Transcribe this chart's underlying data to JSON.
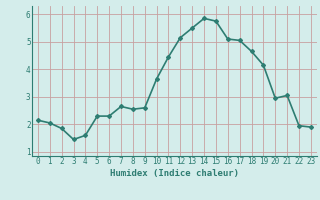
{
  "x": [
    0,
    1,
    2,
    3,
    4,
    5,
    6,
    7,
    8,
    9,
    10,
    11,
    12,
    13,
    14,
    15,
    16,
    17,
    18,
    19,
    20,
    21,
    22,
    23
  ],
  "y": [
    2.15,
    2.05,
    1.85,
    1.45,
    1.6,
    2.3,
    2.3,
    2.65,
    2.55,
    2.6,
    3.65,
    4.45,
    5.15,
    5.5,
    5.85,
    5.75,
    5.1,
    5.05,
    4.65,
    4.15,
    2.95,
    3.05,
    1.95,
    1.9
  ],
  "line_color": "#2e7d72",
  "marker": "D",
  "marker_size": 2.0,
  "bg_color": "#d4edeb",
  "grid_major_color": "#c0d8d8",
  "grid_minor_color": "#ddeeed",
  "xlabel": "Humidex (Indice chaleur)",
  "xlim": [
    -0.5,
    23.5
  ],
  "ylim": [
    0.85,
    6.3
  ],
  "yticks": [
    1,
    2,
    3,
    4,
    5,
    6
  ],
  "xticks": [
    0,
    1,
    2,
    3,
    4,
    5,
    6,
    7,
    8,
    9,
    10,
    11,
    12,
    13,
    14,
    15,
    16,
    17,
    18,
    19,
    20,
    21,
    22,
    23
  ],
  "tick_fontsize": 5.5,
  "xlabel_fontsize": 6.5,
  "line_width": 1.2,
  "spine_color": "#2e7d72"
}
